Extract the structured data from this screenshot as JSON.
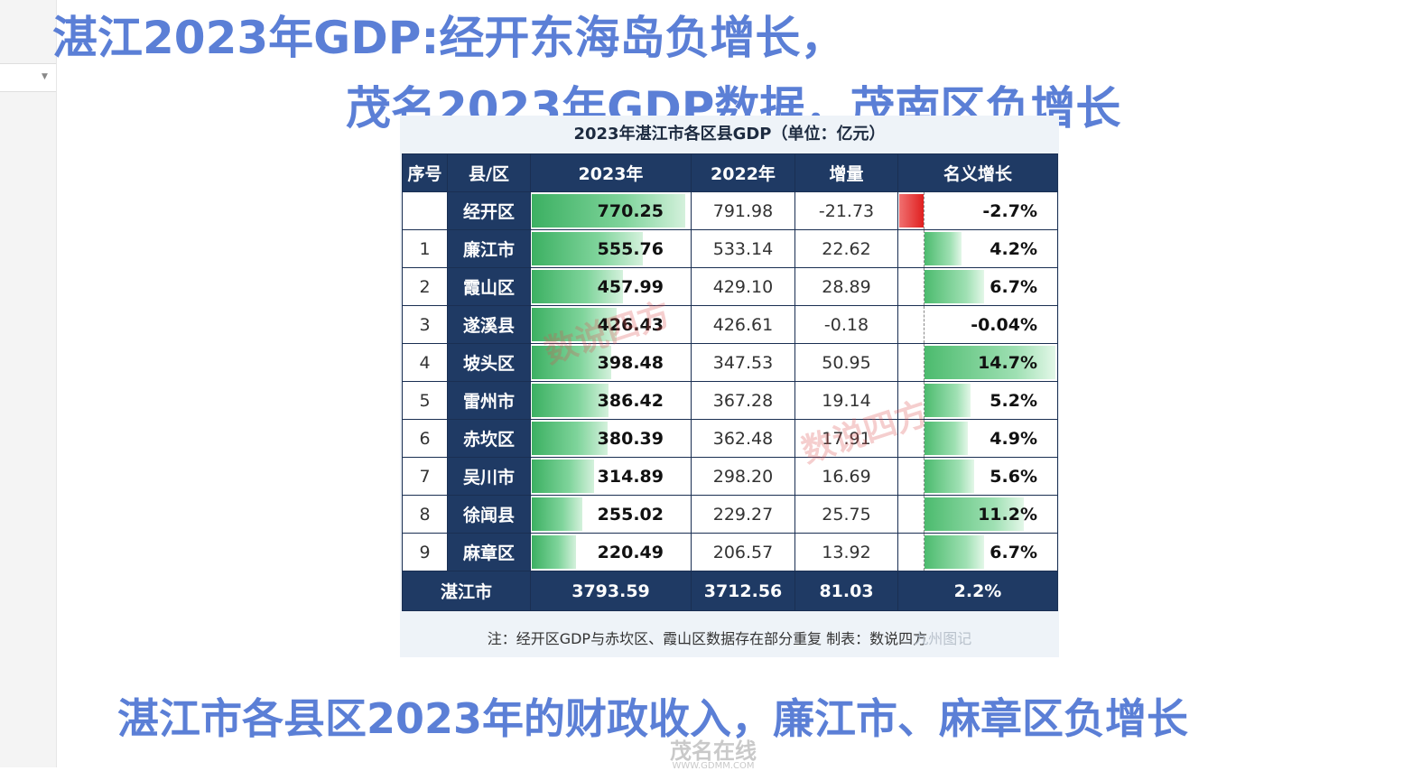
{
  "headlines": [
    "湛江2023年GDP:经开东海岛负增长，",
    "茂名2023年GDP数据，茂南区负增长",
    "湛江市各县区2023年的财政收入，廉江市、麻章区负增长"
  ],
  "table": {
    "title": "2023年湛江市各区县GDP（单位：亿元）",
    "headers": [
      "序号",
      "县/区",
      "2023年",
      "2022年",
      "增量",
      "名义增长"
    ],
    "rows": [
      {
        "idx": "",
        "district": "经开区",
        "gdp2023": "770.25",
        "gdp2022": "791.98",
        "delta": "-21.73",
        "growth": "-2.7%",
        "gdp_value": 770.25,
        "growth_value": -2.7
      },
      {
        "idx": "1",
        "district": "廉江市",
        "gdp2023": "555.76",
        "gdp2022": "533.14",
        "delta": "22.62",
        "growth": "4.2%",
        "gdp_value": 555.76,
        "growth_value": 4.2
      },
      {
        "idx": "2",
        "district": "霞山区",
        "gdp2023": "457.99",
        "gdp2022": "429.10",
        "delta": "28.89",
        "growth": "6.7%",
        "gdp_value": 457.99,
        "growth_value": 6.7
      },
      {
        "idx": "3",
        "district": "遂溪县",
        "gdp2023": "426.43",
        "gdp2022": "426.61",
        "delta": "-0.18",
        "growth": "-0.04%",
        "gdp_value": 426.43,
        "growth_value": -0.04
      },
      {
        "idx": "4",
        "district": "坡头区",
        "gdp2023": "398.48",
        "gdp2022": "347.53",
        "delta": "50.95",
        "growth": "14.7%",
        "gdp_value": 398.48,
        "growth_value": 14.7
      },
      {
        "idx": "5",
        "district": "雷州市",
        "gdp2023": "386.42",
        "gdp2022": "367.28",
        "delta": "19.14",
        "growth": "5.2%",
        "gdp_value": 386.42,
        "growth_value": 5.2
      },
      {
        "idx": "6",
        "district": "赤坎区",
        "gdp2023": "380.39",
        "gdp2022": "362.48",
        "delta": "17.91",
        "growth": "4.9%",
        "gdp_value": 380.39,
        "growth_value": 4.9
      },
      {
        "idx": "7",
        "district": "吴川市",
        "gdp2023": "314.89",
        "gdp2022": "298.20",
        "delta": "16.69",
        "growth": "5.6%",
        "gdp_value": 314.89,
        "growth_value": 5.6
      },
      {
        "idx": "8",
        "district": "徐闻县",
        "gdp2023": "255.02",
        "gdp2022": "229.27",
        "delta": "25.75",
        "growth": "11.2%",
        "gdp_value": 255.02,
        "growth_value": 11.2
      },
      {
        "idx": "9",
        "district": "麻章区",
        "gdp2023": "220.49",
        "gdp2022": "206.57",
        "delta": "13.92",
        "growth": "6.7%",
        "gdp_value": 220.49,
        "growth_value": 6.7
      }
    ],
    "total": {
      "district": "湛江市",
      "gdp2023": "3793.59",
      "gdp2022": "3712.56",
      "delta": "81.03",
      "growth": "2.2%"
    },
    "note": "注：经开区GDP与赤坎区、霞山区数据存在部分重复    制表：数说四方",
    "source_mark": "九州图记"
  },
  "watermark": "数说四方",
  "footer_logo": {
    "main": "茂名在线",
    "sub": "WWW.GDMM.COM"
  }
}
